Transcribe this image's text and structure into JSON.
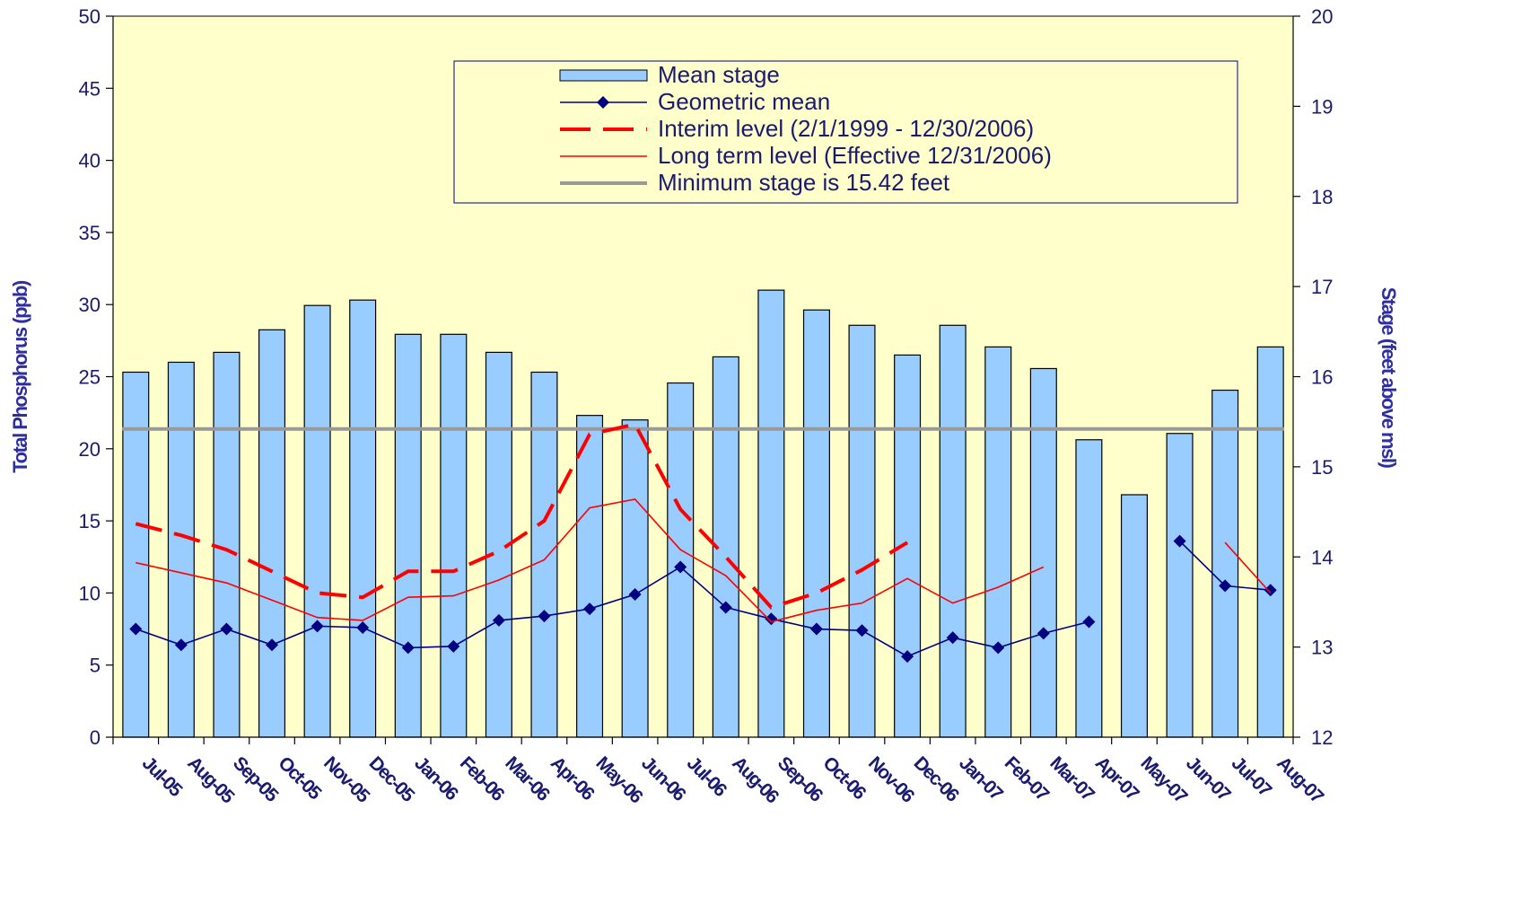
{
  "chart_data": {
    "type": "bar",
    "categories": [
      "Jul-05",
      "Aug-05",
      "Sep-05",
      "Oct-05",
      "Nov-05",
      "Dec-05",
      "Jan-06",
      "Feb-06",
      "Mar-06",
      "Apr-06",
      "May-06",
      "Jun-06",
      "Jul-06",
      "Aug-06",
      "Sep-06",
      "Oct-06",
      "Nov-06",
      "Dec-06",
      "Jan-07",
      "Feb-07",
      "Mar-07",
      "Apr-07",
      "May-07",
      "Jun-07",
      "Jul-07",
      "Aug-07"
    ],
    "ylabel": "Total Phosphorus (ppb)",
    "y2label": "Stage (feet above msl)",
    "ylim": [
      0,
      50
    ],
    "y2lim": [
      12,
      20
    ],
    "yticks": [
      0,
      5,
      10,
      15,
      20,
      25,
      30,
      35,
      40,
      45,
      50
    ],
    "y2ticks": [
      12,
      13,
      14,
      15,
      16,
      17,
      18,
      19,
      20
    ],
    "grid": false,
    "legend_position": "top-right",
    "colors": {
      "plot_bg": "#ffffcc",
      "bar_fill": "#99ccff",
      "bar_stroke": "#000000",
      "geo_line": "#000080",
      "interim": "#ff0000",
      "longterm": "#ff0000",
      "minstage": "#999999",
      "axis_text": "#1a1a6e"
    },
    "series": [
      {
        "name": "Mean stage",
        "kind": "bar",
        "axis": "right",
        "values": [
          16.05,
          16.16,
          16.27,
          16.52,
          16.79,
          16.85,
          16.47,
          16.47,
          16.27,
          16.05,
          15.57,
          15.52,
          15.93,
          16.22,
          16.96,
          16.74,
          16.57,
          16.24,
          16.57,
          16.33,
          16.09,
          15.3,
          14.69,
          15.37,
          15.85,
          16.33
        ]
      },
      {
        "name": "Geometric mean",
        "kind": "line-markers",
        "axis": "left",
        "values": [
          7.5,
          6.4,
          7.5,
          6.4,
          7.7,
          7.6,
          6.2,
          6.3,
          8.1,
          8.4,
          8.9,
          9.9,
          11.8,
          9.0,
          8.2,
          7.5,
          7.4,
          5.6,
          6.9,
          6.2,
          7.2,
          8.0,
          null,
          13.6,
          10.5,
          10.2
        ]
      },
      {
        "name": "Interim level (2/1/1999 - 12/30/2006)",
        "kind": "dashed-line",
        "axis": "left",
        "values": [
          14.8,
          14.0,
          13.0,
          11.5,
          10.0,
          9.7,
          11.5,
          11.5,
          12.9,
          15.0,
          21.0,
          21.7,
          15.8,
          12.5,
          9.0,
          10.0,
          11.6,
          13.5,
          null,
          null,
          null,
          null,
          null,
          null,
          null,
          null
        ]
      },
      {
        "name": "Long term level (Effective 12/31/2006)",
        "kind": "line",
        "axis": "left",
        "values": [
          12.1,
          11.4,
          10.7,
          9.5,
          8.3,
          8.1,
          9.7,
          9.8,
          10.9,
          12.3,
          15.9,
          16.5,
          13.0,
          11.2,
          8.0,
          8.8,
          9.3,
          11.0,
          9.3,
          10.4,
          11.8,
          null,
          null,
          null,
          13.5,
          10.0
        ]
      },
      {
        "name": "Minimum stage is 15.42 feet",
        "kind": "hline",
        "axis": "right",
        "value": 15.42
      }
    ]
  }
}
